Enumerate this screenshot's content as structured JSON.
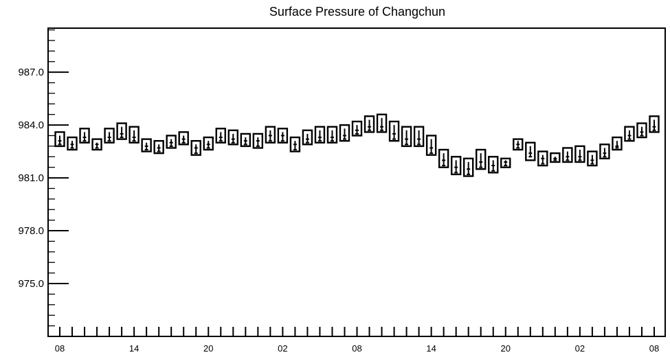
{
  "chart_data": {
    "type": "boxplot",
    "title": "Surface Pressure of Changchun",
    "xlabel": "",
    "ylabel": "",
    "ylim": [
      972.0,
      989.5
    ],
    "yticks": [
      975.0,
      978.0,
      981.0,
      984.0,
      987.0
    ],
    "ytick_labels": [
      "975.0",
      "978.0",
      "981.0",
      "984.0",
      "987.0"
    ],
    "xtick_labels": [
      "08",
      "14",
      "20",
      "02",
      "08",
      "14",
      "20",
      "02",
      "08"
    ],
    "x_hours": [
      8,
      9,
      10,
      11,
      12,
      13,
      14,
      15,
      16,
      17,
      18,
      19,
      20,
      21,
      22,
      23,
      0,
      1,
      2,
      3,
      4,
      5,
      6,
      7,
      8,
      9,
      10,
      11,
      12,
      13,
      14,
      15,
      16,
      17,
      18,
      19,
      20,
      21,
      22,
      23,
      0,
      1,
      2,
      3,
      4,
      5,
      6,
      7,
      8
    ],
    "box_top": [
      983.6,
      983.3,
      983.8,
      983.2,
      983.8,
      984.1,
      983.9,
      983.2,
      983.1,
      983.4,
      983.6,
      983.1,
      983.3,
      983.8,
      983.7,
      983.5,
      983.5,
      983.9,
      983.8,
      983.3,
      983.7,
      983.9,
      983.9,
      984.0,
      984.2,
      984.5,
      984.6,
      984.2,
      983.9,
      983.9,
      983.4,
      982.6,
      982.2,
      982.1,
      982.6,
      982.2,
      982.1,
      983.2,
      983.0,
      982.5,
      982.4,
      982.7,
      982.8,
      982.5,
      982.9,
      983.3,
      983.9,
      984.1,
      984.5
    ],
    "box_bottom": [
      982.8,
      982.6,
      983.0,
      982.6,
      983.0,
      983.2,
      983.0,
      982.5,
      982.4,
      982.7,
      982.9,
      982.3,
      982.6,
      983.0,
      982.9,
      982.8,
      982.7,
      983.0,
      983.0,
      982.5,
      982.9,
      983.0,
      983.0,
      983.1,
      983.4,
      983.6,
      983.6,
      983.1,
      982.8,
      982.8,
      982.3,
      981.6,
      981.2,
      981.1,
      981.5,
      981.3,
      981.6,
      982.6,
      982.0,
      981.7,
      981.9,
      981.9,
      981.9,
      981.7,
      982.1,
      982.6,
      983.1,
      983.3,
      983.6
    ],
    "median": [
      983.1,
      982.9,
      983.3,
      982.9,
      983.3,
      983.5,
      983.3,
      982.8,
      982.7,
      983.0,
      983.2,
      982.7,
      982.9,
      983.3,
      983.2,
      983.1,
      983.1,
      983.4,
      983.4,
      982.9,
      983.2,
      983.3,
      983.3,
      983.4,
      983.7,
      983.9,
      983.9,
      983.5,
      983.2,
      983.2,
      982.7,
      982.0,
      981.6,
      981.5,
      981.9,
      981.7,
      981.9,
      982.9,
      982.4,
      982.1,
      982.1,
      982.2,
      982.2,
      982.0,
      982.4,
      982.8,
      983.4,
      983.6,
      983.9
    ],
    "whisker_low": [
      982.9,
      982.7,
      983.1,
      982.7,
      983.1,
      983.3,
      983.1,
      982.6,
      982.5,
      982.8,
      983.0,
      982.4,
      982.7,
      983.1,
      983.0,
      982.9,
      982.8,
      983.1,
      983.1,
      982.6,
      983.0,
      983.1,
      983.1,
      983.2,
      983.5,
      983.7,
      983.7,
      983.2,
      982.9,
      982.9,
      982.4,
      981.7,
      981.3,
      981.2,
      981.6,
      981.4,
      981.7,
      982.7,
      982.2,
      981.8,
      982.0,
      982.0,
      982.0,
      981.8,
      982.2,
      982.7,
      983.2,
      983.4,
      983.7
    ],
    "whisker_high": [
      983.4,
      983.1,
      983.6,
      983.0,
      983.6,
      983.9,
      983.7,
      983.0,
      982.9,
      983.2,
      983.4,
      982.9,
      983.1,
      983.6,
      983.5,
      983.3,
      983.3,
      983.7,
      983.6,
      983.1,
      983.5,
      983.7,
      983.7,
      983.8,
      984.0,
      984.3,
      984.4,
      984.0,
      983.7,
      983.7,
      983.2,
      982.4,
      982.0,
      981.9,
      982.4,
      982.0,
      982.0,
      983.1,
      982.8,
      982.3,
      982.2,
      982.5,
      982.6,
      982.3,
      982.7,
      983.1,
      983.7,
      983.9,
      984.3
    ]
  }
}
